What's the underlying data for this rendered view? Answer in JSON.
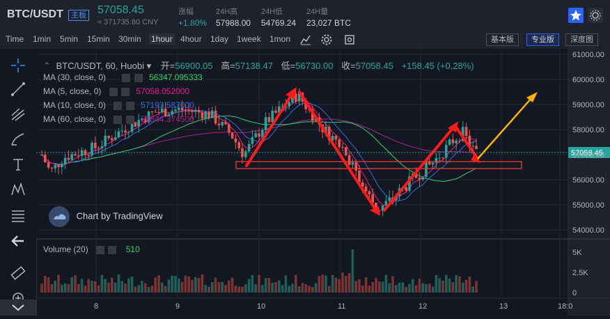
{
  "header": {
    "pair": "BTC/USDT",
    "badge": "主板",
    "last_price": "57058.45",
    "cny_price": "≈ 371735.80 CNY",
    "stats": [
      {
        "label": "涨幅",
        "value": "+1.80%"
      },
      {
        "label": "24H高",
        "value": "57988.00"
      },
      {
        "label": "24H低",
        "value": "54769.24"
      },
      {
        "label": "24H量",
        "value": "23,027 BTC"
      }
    ]
  },
  "toolbar": {
    "timeframes": [
      "Time",
      "1min",
      "5min",
      "15min",
      "30min",
      "1hour",
      "4hour",
      "1day",
      "1week",
      "1mon"
    ],
    "active_timeframe": "1hour",
    "views": [
      "基本版",
      "专业版",
      "深度图"
    ],
    "active_view": "专业版"
  },
  "legend": {
    "symbol": "BTC/USDT, 60, Huobi",
    "open_label": "开=",
    "open": "56900.05",
    "high_label": "高=",
    "high": "57138.47",
    "low_label": "低=",
    "low": "56730.00",
    "close_label": "收=",
    "close": "57058.45",
    "change": "+158.45 (+0.28%)",
    "ma": [
      {
        "label": "MA (30, close, 0)",
        "value": "56347.095333",
        "color": "#26d96d"
      },
      {
        "label": "MA (5, close, 0)",
        "value": "57058.052000",
        "color": "#e91e8a"
      },
      {
        "label": "MA (10, close, 0)",
        "value": "57193.587000",
        "color": "#2f6fe0"
      },
      {
        "label": "MA (60, close, 0)",
        "value": "56844.374500",
        "color": "#b0208f"
      }
    ],
    "volume_label": "Volume (20)",
    "volume_value": "510"
  },
  "price_axis": {
    "ticks": [
      "61000.00",
      "60000.00",
      "59000.00",
      "58000.00",
      "57000.00",
      "56000.00",
      "55000.00",
      "54000.00"
    ],
    "current_label": "57058.45"
  },
  "volume_axis": {
    "ticks": [
      "5K",
      "2.5K",
      "0"
    ]
  },
  "time_axis": {
    "ticks": [
      "8",
      "9",
      "10",
      "11",
      "12",
      "13",
      "18:0"
    ]
  },
  "watermark": "Chart by TradingView",
  "colors": {
    "up": "#26a69a",
    "down": "#ef5350",
    "accent": "#2962ff",
    "arrow_red": "#ff1a1a",
    "arrow_yellow": "#ffb300"
  },
  "icons": [
    "crosshair-icon",
    "trendline-icon",
    "pitchfork-icon",
    "brush-icon",
    "text-icon",
    "pattern-icon",
    "fib-icon",
    "back-arrow-icon",
    "ruler-icon",
    "zoom-icon",
    "star-icon",
    "settings-icon",
    "indicators-icon",
    "snapshot-icon"
  ]
}
